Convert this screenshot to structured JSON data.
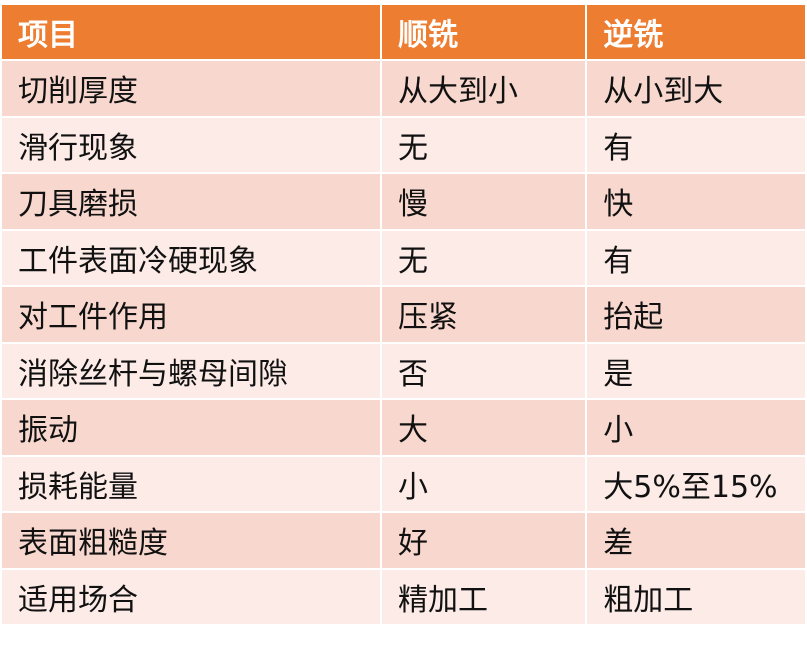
{
  "header": [
    "项目",
    "顺铣",
    "逆铣"
  ],
  "rows": [
    [
      "切削厚度",
      "从大到小",
      "从小到大"
    ],
    [
      "滑行现象",
      "无",
      "有"
    ],
    [
      "刀具磨损",
      "慢",
      "快"
    ],
    [
      "工件表面冷硬现象",
      "无",
      "有"
    ],
    [
      "对工件作用",
      "压紧",
      "抬起"
    ],
    [
      "消除丝杆与螺母间隙",
      "否",
      "是"
    ],
    [
      "振动",
      "大",
      "小"
    ],
    [
      "损耗能量",
      "小",
      "大5%至15%"
    ],
    [
      "表面粗糙度",
      "好",
      "差"
    ],
    [
      "适用场合",
      "精加工",
      "粗加工"
    ]
  ],
  "colors": {
    "header": "#ED7D31",
    "row_dark": "#F8D8CE",
    "row_light": "#FCEBE6"
  }
}
